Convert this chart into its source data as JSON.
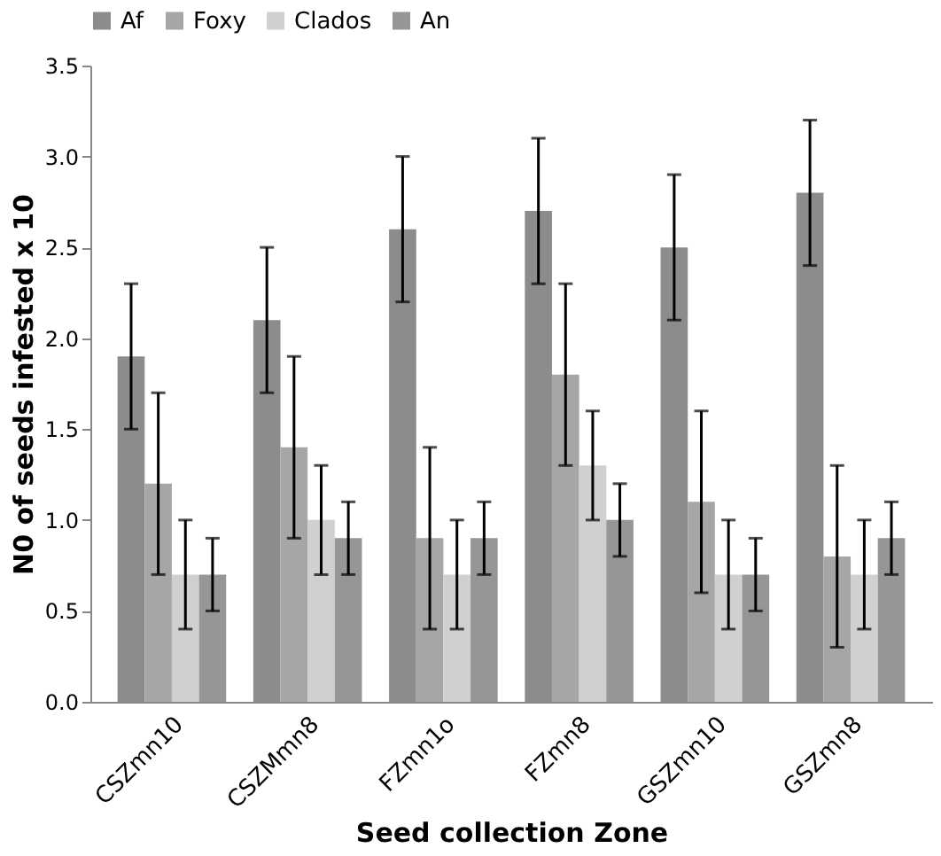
{
  "chart_data": {
    "type": "bar",
    "xlabel": "Seed collection Zone",
    "ylabel": "N0 of seeds infested x 10",
    "categories": [
      "CSZmn10",
      "CSZMmn8",
      "FZmn1o",
      "FZmn8",
      "GSZmn10",
      "GSZmn8"
    ],
    "series": [
      {
        "name": "Af",
        "color": "#8c8c8c",
        "values": [
          1.9,
          2.1,
          2.6,
          2.7,
          2.5,
          2.8
        ],
        "errors": [
          0.4,
          0.4,
          0.4,
          0.4,
          0.4,
          0.4
        ]
      },
      {
        "name": "Foxy",
        "color": "#a6a6a6",
        "values": [
          1.2,
          1.4,
          0.9,
          1.8,
          1.1,
          0.8
        ],
        "errors": [
          0.5,
          0.5,
          0.5,
          0.5,
          0.5,
          0.5
        ]
      },
      {
        "name": "Clados",
        "color": "#d0d0d0",
        "values": [
          0.7,
          1.0,
          0.7,
          1.3,
          0.7,
          0.7
        ],
        "errors": [
          0.3,
          0.3,
          0.3,
          0.3,
          0.3,
          0.3
        ]
      },
      {
        "name": "An",
        "color": "#969696",
        "values": [
          0.7,
          0.9,
          0.9,
          1.0,
          0.7,
          0.9
        ],
        "errors": [
          0.2,
          0.2,
          0.2,
          0.2,
          0.2,
          0.2
        ]
      }
    ],
    "ylim": [
      0,
      3.5
    ],
    "yticks": [
      {
        "value": 0,
        "label": "0.0"
      },
      0.5,
      {
        "value": 1,
        "label": "1.0"
      },
      1.5,
      {
        "value": 2,
        "label": "2.0"
      },
      2.5,
      {
        "value": 3,
        "label": "3.0"
      },
      3.5
    ],
    "grid": false,
    "legend": "top"
  }
}
